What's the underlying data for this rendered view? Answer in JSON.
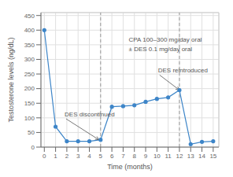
{
  "chart_data": {
    "type": "line",
    "x": [
      0,
      1,
      2,
      3,
      4,
      5,
      6,
      7,
      8,
      9,
      10,
      11,
      12,
      13,
      14,
      15
    ],
    "values": [
      400,
      70,
      20,
      20,
      20,
      25,
      138,
      140,
      143,
      155,
      165,
      170,
      195,
      10,
      18,
      20
    ],
    "color": "#3d85c8",
    "marker": "circle",
    "xlabel": "Time (months)",
    "ylabel": "Testosterone levels (ng/dL)",
    "xlim": [
      -0.3,
      15.5
    ],
    "ylim": [
      0,
      460
    ],
    "xticks": [
      0,
      1,
      2,
      3,
      4,
      5,
      6,
      7,
      8,
      9,
      10,
      11,
      12,
      13,
      14,
      15
    ],
    "yticks": [
      0,
      50,
      100,
      150,
      200,
      250,
      300,
      350,
      400,
      450
    ],
    "grid": true,
    "vlines": [
      {
        "x": 5,
        "color": "#999999",
        "line_style": "dashed"
      },
      {
        "x": 12,
        "color": "#999999",
        "line_style": "dashed"
      }
    ],
    "annotations": [
      {
        "text": "DES discontinued",
        "xy": [
          4.85,
          25
        ],
        "xytext": [
          1.8,
          110
        ]
      },
      {
        "text": "DES reintroduced",
        "xy": [
          12.0,
          195
        ],
        "xytext": [
          10.1,
          260
        ]
      },
      {
        "text": "CPA 100–300 mg/day oral",
        "xytext": [
          7.5,
          365
        ]
      },
      {
        "text": "± DES 0.1 mg/day oral",
        "xytext": [
          7.5,
          335
        ]
      }
    ]
  }
}
